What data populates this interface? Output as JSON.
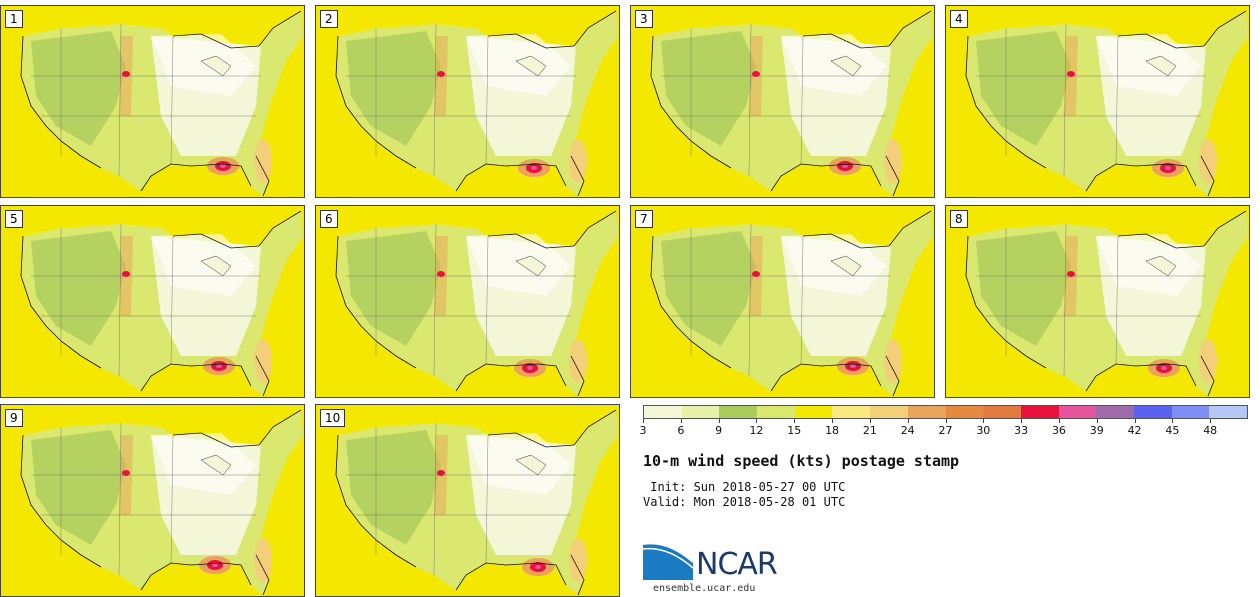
{
  "panels": [
    "1",
    "2",
    "3",
    "4",
    "5",
    "6",
    "7",
    "8",
    "9",
    "10"
  ],
  "colorbar": {
    "colors": [
      "#f4f6d8",
      "#e6f0a8",
      "#a8cb5c",
      "#dbe870",
      "#f5e800",
      "#f9ea80",
      "#f2cf78",
      "#e9a35a",
      "#e68a40",
      "#e07a40",
      "#e8103c",
      "#e5559b",
      "#9f6aa8",
      "#5a62f0",
      "#7d8ef5",
      "#b5c8f5"
    ],
    "ticks": [
      "3",
      "6",
      "9",
      "12",
      "15",
      "18",
      "21",
      "24",
      "27",
      "30",
      "33",
      "36",
      "39",
      "42",
      "45",
      "48"
    ]
  },
  "title": "10-m wind speed (kts) postage stamp",
  "init": " Init: Sun 2018-05-27 00 UTC",
  "valid": "Valid: Mon 2018-05-28 01 UTC",
  "logo": {
    "text": "NCAR",
    "url": "ensemble.ucar.edu"
  }
}
